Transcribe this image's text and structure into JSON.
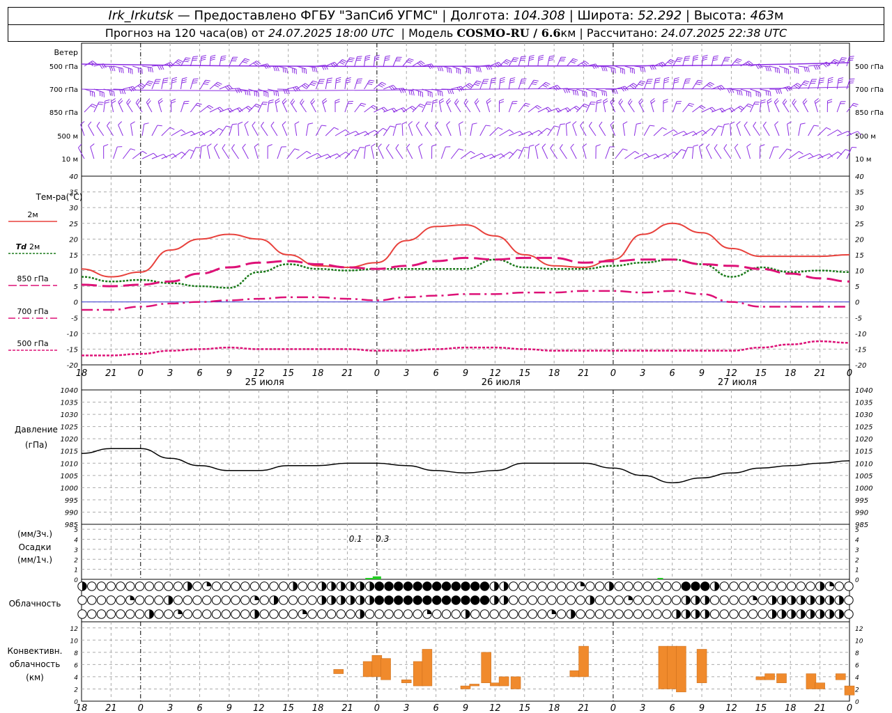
{
  "header": {
    "station": "Irk_Irkutsk",
    "dash": "—",
    "provider": "Предоставлено ФГБУ \"ЗапСиб УГМС\"",
    "lon_label": "Долгота:",
    "lon": "104.308",
    "lat_label": "Широта:",
    "lat": "52.292",
    "alt_label": "Высота:",
    "alt": "463",
    "alt_unit": "м",
    "forecast_prefix": "Прогноз на 120 часа(ов) от",
    "forecast_start": "24.07.2025 18:00 UTC",
    "model_label": "Модель",
    "model": "COSMO-RU / 6.6",
    "model_unit": "км",
    "computed_label": "Рассчитано:",
    "computed": "24.07.2025 22:38 UTC"
  },
  "time_axis": {
    "hours": [
      "18",
      "21",
      "0",
      "3",
      "6",
      "9",
      "12",
      "15",
      "18",
      "21",
      "0",
      "3",
      "6",
      "9",
      "12",
      "15",
      "18",
      "21",
      "0",
      "3",
      "6",
      "9",
      "12",
      "15",
      "18",
      "21",
      "0"
    ],
    "dates": [
      "25 июля",
      "26 июля",
      "27 июля"
    ],
    "date_centers_step": [
      10,
      18,
      26
    ]
  },
  "wind": {
    "title": "Ветер",
    "levels": [
      "500 гПа",
      "700 гПа",
      "850 гПа",
      "500 м",
      "10 м"
    ],
    "levels_right": [
      "500 гПа",
      "700 гПа",
      "850 гПа",
      "500 м",
      "10 м"
    ],
    "color": "#8a2be2"
  },
  "temperature": {
    "title": "Тем-ра(°C)",
    "ylim": [
      -20,
      40
    ],
    "ticks": [
      "40",
      "35",
      "30",
      "25",
      "20",
      "15",
      "10",
      "5",
      "0",
      "-5",
      "-10",
      "-15",
      "-20"
    ],
    "legend": [
      {
        "label": "2м",
        "color": "#e8413c"
      },
      {
        "label_it": "Td",
        "label": "2м",
        "color": "#1a7a1a"
      },
      {
        "label": "850 гПа",
        "color": "#dd1177"
      },
      {
        "label": "700 гПа",
        "color": "#dd1177"
      },
      {
        "label": "500 гПа",
        "color": "#dd1177"
      }
    ]
  },
  "pressure": {
    "title": "Давление",
    "unit": "(гПа)",
    "ylim": [
      985,
      1040
    ],
    "ticks": [
      "1040",
      "1035",
      "1030",
      "1025",
      "1020",
      "1015",
      "1010",
      "1005",
      "1000",
      "995",
      "990",
      "985"
    ]
  },
  "precip": {
    "label1": "(мм/3ч.)",
    "label2": "Осадки",
    "label3": "(мм/1ч.)",
    "ticks": [
      "5",
      "4",
      "3",
      "2",
      "1",
      "0"
    ],
    "annotations": [
      "0.1",
      "0.3"
    ]
  },
  "clouds": {
    "title": "Облачность"
  },
  "convective": {
    "title1": "Конвективн.",
    "title2": "облачность",
    "title3": "(км)",
    "ticks": [
      "12",
      "10",
      "8",
      "6",
      "4",
      "2",
      "0"
    ]
  },
  "chart_data": [
    {
      "type": "line",
      "title": "Тем-ра(°C)",
      "x_step_hours": 3,
      "x_start": "24.07.2025 18:00 UTC",
      "ylim": [
        -20,
        40
      ],
      "series": [
        {
          "name": "2м",
          "values": [
            10.5,
            8.0,
            9.5,
            16.5,
            20.0,
            21.5,
            20.0,
            15.0,
            11.5,
            11.0,
            12.5,
            19.5,
            24.0,
            24.5,
            21.0,
            15.0,
            11.5,
            11.0,
            13.5,
            21.5,
            25.0,
            22.0,
            17.0,
            14.5,
            14.5,
            14.5,
            15.0
          ]
        },
        {
          "name": "Td 2м",
          "values": [
            8.0,
            6.5,
            7.0,
            6.0,
            5.0,
            4.5,
            9.5,
            12.0,
            10.5,
            10.0,
            10.5,
            10.5,
            10.5,
            10.5,
            13.5,
            11.0,
            10.5,
            10.5,
            11.5,
            12.5,
            13.5,
            12.0,
            8.0,
            11.0,
            9.5,
            10.0,
            9.5
          ]
        },
        {
          "name": "850 гПа",
          "values": [
            5.5,
            5.0,
            5.5,
            6.5,
            9.0,
            11.0,
            12.5,
            13.0,
            12.0,
            11.0,
            10.5,
            11.5,
            13.0,
            14.0,
            13.5,
            14.0,
            14.0,
            12.5,
            13.0,
            13.5,
            13.5,
            12.0,
            11.5,
            10.5,
            9.0,
            7.5,
            6.5
          ]
        },
        {
          "name": "700 гПа",
          "values": [
            -2.5,
            -2.5,
            -1.5,
            -0.5,
            0.0,
            0.5,
            1.0,
            1.5,
            1.5,
            1.0,
            0.5,
            1.5,
            2.0,
            2.5,
            2.5,
            3.0,
            3.0,
            3.5,
            3.5,
            3.0,
            3.5,
            2.5,
            0.0,
            -1.5,
            -1.5,
            -1.5,
            -1.5
          ]
        },
        {
          "name": "500 гПа",
          "values": [
            -17.0,
            -17.0,
            -16.5,
            -15.5,
            -15.0,
            -14.5,
            -15.0,
            -15.0,
            -15.0,
            -15.0,
            -15.5,
            -15.5,
            -15.0,
            -14.5,
            -14.5,
            -15.0,
            -15.5,
            -15.5,
            -15.5,
            -15.5,
            -15.5,
            -15.5,
            -15.5,
            -14.5,
            -13.5,
            -12.5,
            -13.0
          ]
        }
      ]
    },
    {
      "type": "line",
      "title": "Давление",
      "x_step_hours": 3,
      "x_start": "24.07.2025 18:00 UTC",
      "ylim": [
        985,
        1040
      ],
      "series": [
        {
          "name": "Давление",
          "values": [
            1014,
            1016,
            1016,
            1012,
            1009,
            1007,
            1007,
            1009,
            1009,
            1010,
            1010,
            1009,
            1007,
            1006,
            1007,
            1010,
            1010,
            1010,
            1008,
            1005,
            1002,
            1004,
            1006,
            1008,
            1009,
            1010,
            1011
          ]
        }
      ]
    },
    {
      "type": "bar",
      "title": "Осадки",
      "x_hours": [
        0.75,
        1.0
      ],
      "values": [
        0.1,
        0.3
      ]
    },
    {
      "type": "bar",
      "title": "Конвективн. облачность (км)",
      "ylim": [
        0,
        13
      ],
      "bars": [
        {
          "x": 8.7,
          "lo": 4.5,
          "hi": 5.2
        },
        {
          "x": 9.7,
          "lo": 4.0,
          "hi": 6.5
        },
        {
          "x": 10.0,
          "lo": 4.0,
          "hi": 7.5
        },
        {
          "x": 10.3,
          "lo": 3.5,
          "hi": 7.0
        },
        {
          "x": 11.0,
          "lo": 3.0,
          "hi": 3.5
        },
        {
          "x": 11.4,
          "lo": 2.5,
          "hi": 6.5
        },
        {
          "x": 11.7,
          "lo": 2.5,
          "hi": 8.5
        },
        {
          "x": 13.0,
          "lo": 2.0,
          "hi": 2.5
        },
        {
          "x": 13.3,
          "lo": 2.5,
          "hi": 2.8
        },
        {
          "x": 13.7,
          "lo": 3.0,
          "hi": 8.0
        },
        {
          "x": 14.0,
          "lo": 2.5,
          "hi": 3.0
        },
        {
          "x": 14.3,
          "lo": 2.5,
          "hi": 4.0
        },
        {
          "x": 14.7,
          "lo": 2.0,
          "hi": 4.0
        },
        {
          "x": 16.7,
          "lo": 4.0,
          "hi": 5.0
        },
        {
          "x": 17.0,
          "lo": 4.0,
          "hi": 9.0
        },
        {
          "x": 19.7,
          "lo": 2.0,
          "hi": 9.0
        },
        {
          "x": 20.0,
          "lo": 2.0,
          "hi": 9.0
        },
        {
          "x": 20.3,
          "lo": 1.5,
          "hi": 9.0
        },
        {
          "x": 21.0,
          "lo": 3.0,
          "hi": 8.5
        },
        {
          "x": 23.0,
          "lo": 3.5,
          "hi": 4.0
        },
        {
          "x": 23.3,
          "lo": 3.5,
          "hi": 4.5
        },
        {
          "x": 23.7,
          "lo": 3.0,
          "hi": 4.5
        },
        {
          "x": 24.7,
          "lo": 2.0,
          "hi": 4.5
        },
        {
          "x": 25.0,
          "lo": 2.0,
          "hi": 3.0
        },
        {
          "x": 25.7,
          "lo": 3.5,
          "hi": 4.5
        },
        {
          "x": 26.0,
          "lo": 1.0,
          "hi": 2.5
        }
      ]
    }
  ]
}
